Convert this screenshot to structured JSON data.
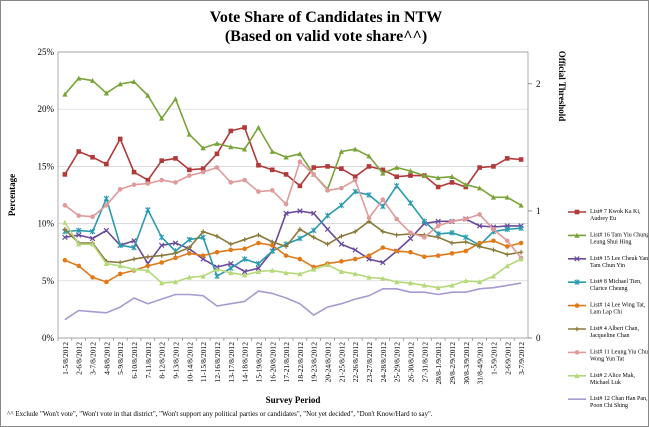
{
  "chart_data": {
    "type": "line",
    "title": "Vote Share of Candidates in NTW",
    "subtitle": "(Based on valid vote share^^)",
    "xlabel": "Survey Period",
    "ylabel": "Percentage",
    "y2label": "Official Threshold",
    "ylim": [
      0,
      25
    ],
    "y2lim": [
      0,
      2.25
    ],
    "y_ticks": [
      "0%",
      "5%",
      "10%",
      "15%",
      "20%",
      "25%"
    ],
    "y2_ticks": [
      "0",
      "1",
      "2"
    ],
    "grid": true,
    "legend_position": "right",
    "categories": [
      "1-5/8/2012",
      "2-6/8/2012",
      "3-7/8/2012",
      "4-8/8/2012",
      "5-9/8/2012",
      "6-10/8/2012",
      "7-11/8/2012",
      "8-12/8/2012",
      "9-13/8/2012",
      "10-14/8/2012",
      "11-15/8/2012",
      "12-16/8/2012",
      "13-17/8/2012",
      "14-18/8/2012",
      "15-19/8/2012",
      "16-20/8/2012",
      "17-21/8/2012",
      "18-22/8/2012",
      "19-23/8/2012",
      "20-24/8/2012",
      "21-25/8/2012",
      "22-26/8/2012",
      "23-27/8/2012",
      "24-28/8/2012",
      "25-29/8/2012",
      "26-30/8/2012",
      "27-31/8/2012",
      "28/8-1/9/2012",
      "29/8-2/9/2012",
      "30/8-3/9/2012",
      "31/8-4/9/2012",
      "1-5/9/2012",
      "2-6/9/2012",
      "3-7/9/2012"
    ],
    "x_tick_labels": [
      "1-5/8/2012",
      "2-6/8/2012",
      "3-7/8/2012",
      "4-8/8/2012",
      "5-9/8/2012",
      "6-10/8/2012",
      "7-11/8/2012",
      "8-12/8/2012",
      "9-13/8/2012",
      "10-14/8/2012",
      "11-15/8/2012",
      "12-16/8/2012",
      "13-17/8/2012",
      "14-18/8/2012",
      "15-19/8/2012",
      "16-20/8/2012",
      "17-21/8/2012",
      "18-22/8/2012",
      "19-23/8/2012",
      "20-24/8/2012",
      "21-25/8/2012",
      "22-26/8/2012",
      "23-27/8/2012",
      "24-28/8/2012",
      "25-29/8/2012",
      "26-30/8/2012",
      "27-31/8/2012",
      "28/8-1/9/2012",
      "29/8-2/9/2012",
      "30/8-3/9/2012",
      "31/8-4/9/2012",
      "1-5/9/2012",
      "2-6/9/2012",
      "3-7/9/2012"
    ],
    "series": [
      {
        "name": "List# 7 Kwok Ka Ki, Audrey Eu",
        "color": "#b03a3a",
        "marker": "square",
        "values": [
          14.3,
          16.3,
          15.8,
          15.2,
          17.4,
          14.5,
          13.8,
          15.5,
          15.7,
          14.7,
          14.8,
          16.1,
          18.1,
          18.4,
          15.1,
          14.7,
          14.3,
          13.3,
          14.9,
          15.0,
          14.8,
          14.1,
          15.0,
          14.7,
          14.1,
          14.2,
          14.2,
          13.2,
          13.6,
          13.2,
          14.9,
          15.0,
          15.7,
          15.6
        ]
      },
      {
        "name": "List# 16 Tam Yiu Chung, Leung Shui Hing",
        "color": "#7aa33a",
        "marker": "triangle",
        "values": [
          21.3,
          22.7,
          22.5,
          21.4,
          22.2,
          22.4,
          21.2,
          19.2,
          20.9,
          17.8,
          16.6,
          17.0,
          16.7,
          16.5,
          18.4,
          16.3,
          15.8,
          16.1,
          14.3,
          13.0,
          16.3,
          16.5,
          15.9,
          14.4,
          14.9,
          14.6,
          14.2,
          14.0,
          14.1,
          13.4,
          13.1,
          12.3,
          12.3,
          11.6
        ]
      },
      {
        "name": "List# 15 Lee Cheuk Yan, Tam Chun Yin",
        "color": "#6a4a9a",
        "marker": "x",
        "values": [
          8.8,
          9.0,
          8.7,
          9.4,
          8.1,
          8.5,
          6.5,
          8.1,
          8.3,
          7.8,
          6.9,
          6.2,
          6.5,
          5.8,
          6.1,
          7.6,
          10.9,
          11.1,
          10.9,
          9.5,
          8.2,
          7.7,
          6.9,
          6.6,
          7.6,
          8.7,
          10.0,
          10.2,
          10.2,
          10.4,
          9.8,
          9.7,
          9.8,
          9.8
        ]
      },
      {
        "name": "List# 8 Michael Tien, Clarice Cheung",
        "color": "#2a9ab0",
        "marker": "star",
        "values": [
          9.3,
          9.4,
          9.3,
          12.2,
          8.1,
          7.9,
          11.2,
          8.8,
          7.6,
          8.6,
          8.8,
          5.4,
          6.1,
          6.9,
          6.5,
          7.6,
          8.2,
          8.7,
          9.4,
          10.7,
          11.6,
          12.8,
          12.5,
          11.5,
          13.3,
          11.8,
          10.2,
          9.1,
          9.2,
          8.8,
          8.1,
          9.3,
          9.5,
          9.6
        ]
      },
      {
        "name": "List# 14 Lee Wing Tat, Lam Lap Chi",
        "color": "#e07a1a",
        "marker": "circle",
        "values": [
          6.8,
          6.3,
          5.3,
          4.9,
          5.6,
          5.9,
          6.3,
          6.6,
          7.0,
          7.4,
          7.2,
          7.5,
          7.7,
          7.8,
          8.3,
          8.1,
          7.2,
          6.9,
          6.2,
          6.5,
          6.7,
          6.9,
          7.2,
          7.9,
          7.6,
          7.5,
          7.1,
          7.2,
          7.4,
          7.6,
          8.3,
          8.5,
          8.0,
          8.3
        ]
      },
      {
        "name": "List# 4 Albert Chan, Jacqueline Chan",
        "color": "#8a7a3a",
        "marker": "plus",
        "values": [
          9.5,
          8.3,
          8.3,
          6.7,
          6.6,
          6.9,
          7.1,
          7.2,
          7.4,
          7.9,
          9.3,
          8.9,
          8.2,
          8.6,
          9.0,
          8.4,
          8.0,
          9.5,
          8.8,
          8.2,
          8.9,
          9.3,
          10.2,
          9.3,
          9.0,
          9.1,
          9.0,
          8.8,
          8.3,
          8.4,
          8.0,
          7.7,
          7.3,
          7.5
        ]
      },
      {
        "name": "List# 11 Leung Yiu Chung, Wong Yun Tat",
        "color": "#e09a9a",
        "marker": "circle",
        "values": [
          11.6,
          10.7,
          10.6,
          11.6,
          13.0,
          13.4,
          13.5,
          13.8,
          13.6,
          14.2,
          14.5,
          14.9,
          13.6,
          13.8,
          12.8,
          12.9,
          11.7,
          15.4,
          14.3,
          12.9,
          13.1,
          13.8,
          10.5,
          12.1,
          10.4,
          9.2,
          8.8,
          9.8,
          10.2,
          10.4,
          10.8,
          9.5,
          8.5,
          7.0
        ]
      },
      {
        "name": "List# 2 Alice Mak, Michael Luk",
        "color": "#b5d97a",
        "marker": "triangle",
        "values": [
          10.1,
          8.2,
          8.2,
          6.5,
          6.3,
          6.0,
          5.9,
          4.8,
          4.9,
          5.3,
          5.4,
          6.0,
          5.7,
          5.5,
          5.8,
          5.9,
          5.7,
          5.6,
          6.0,
          6.4,
          5.8,
          5.6,
          5.3,
          5.2,
          4.9,
          4.8,
          4.6,
          4.4,
          4.6,
          5.0,
          4.9,
          5.4,
          6.3,
          6.9
        ]
      },
      {
        "name": "List# 12 Chan Han Pan, Poon Chi Shing",
        "color": "#a89ad0",
        "marker": "none",
        "values": [
          1.6,
          2.4,
          2.3,
          2.2,
          2.7,
          3.5,
          3.0,
          3.4,
          3.8,
          3.8,
          3.7,
          2.8,
          3.0,
          3.2,
          4.1,
          3.9,
          3.5,
          3.0,
          2.0,
          2.7,
          3.0,
          3.4,
          3.7,
          4.3,
          4.3,
          4.0,
          4.0,
          3.8,
          4.0,
          4.0,
          4.3,
          4.4,
          4.6,
          4.8
        ]
      }
    ],
    "footnote": "^^ Exclude \"Won't vote\", \"Won't vote in that district\", \"Won't support any political parties or candidates\", \"Not yet decided\", \"Don't Know/Hard to say\"."
  }
}
